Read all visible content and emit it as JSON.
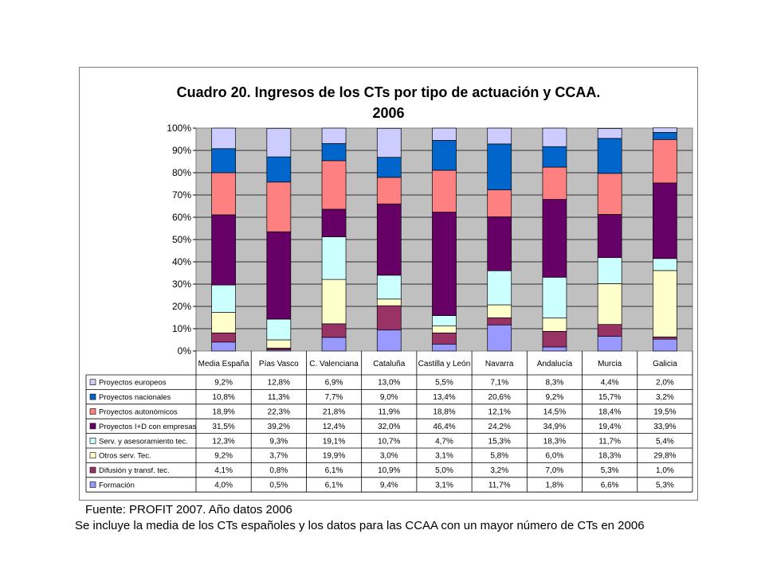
{
  "chart_data": {
    "type": "bar",
    "stacked": true,
    "percent_stacked": true,
    "title": "Cuadro 20. Ingresos de los CTs por tipo de actuación y CCAA. 2006",
    "title_lines": [
      "Cuadro 20. Ingresos de los CTs por tipo de actuación y CCAA.",
      "2006"
    ],
    "categories": [
      "Media España",
      "Pías Vasco",
      "C. Valenciana",
      "Cataluña",
      "Castilla y León",
      "Navarra",
      "Andalucía",
      "Murcia",
      "Galicia"
    ],
    "ylim": [
      0,
      100
    ],
    "yticks": [
      "0%",
      "10%",
      "20%",
      "30%",
      "40%",
      "50%",
      "60%",
      "70%",
      "80%",
      "90%",
      "100%"
    ],
    "grid": true,
    "plot_background": "#c0c0c0",
    "legend_placement": "data-table-left",
    "series": [
      {
        "name": "Proyectos europeos",
        "color": "#ccccff",
        "values": [
          9.2,
          12.8,
          6.9,
          13.0,
          5.5,
          7.1,
          8.3,
          4.4,
          2.0
        ],
        "labels": [
          "9,2%",
          "12,8%",
          "6,9%",
          "13,0%",
          "5,5%",
          "7,1%",
          "8,3%",
          "4,4%",
          "2,0%"
        ]
      },
      {
        "name": "Proyectos nacionales",
        "color": "#0066cc",
        "values": [
          10.8,
          11.3,
          7.7,
          9.0,
          13.4,
          20.6,
          9.2,
          15.7,
          3.2
        ],
        "labels": [
          "10,8%",
          "11,3%",
          "7,7%",
          "9,0%",
          "13,4%",
          "20,6%",
          "9,2%",
          "15,7%",
          "3,2%"
        ]
      },
      {
        "name": "Proyectos autonómicos",
        "color": "#ff8080",
        "values": [
          18.9,
          22.3,
          21.8,
          11.9,
          18.8,
          12.1,
          14.5,
          18.4,
          19.5
        ],
        "labels": [
          "18,9%",
          "22,3%",
          "21,8%",
          "11,9%",
          "18,8%",
          "12,1%",
          "14,5%",
          "18,4%",
          "19,5%"
        ]
      },
      {
        "name": "Proyectos I+D con empresas",
        "color": "#660066",
        "values": [
          31.5,
          39.2,
          12.4,
          32.0,
          46.4,
          24.2,
          34.9,
          19.4,
          33.9
        ],
        "labels": [
          "31,5%",
          "39,2%",
          "12,4%",
          "32,0%",
          "46,4%",
          "24,2%",
          "34,9%",
          "19,4%",
          "33,9%"
        ]
      },
      {
        "name": "Serv. y asesoramiento tec.",
        "color": "#ccffff",
        "values": [
          12.3,
          9.3,
          19.1,
          10.7,
          4.7,
          15.3,
          18.3,
          11.7,
          5.4
        ],
        "labels": [
          "12,3%",
          "9,3%",
          "19,1%",
          "10,7%",
          "4,7%",
          "15,3%",
          "18,3%",
          "11,7%",
          "5,4%"
        ]
      },
      {
        "name": "Otros serv. Tec.",
        "color": "#ffffcc",
        "values": [
          9.2,
          3.7,
          19.9,
          3.0,
          3.1,
          5.8,
          6.0,
          18.3,
          29.8
        ],
        "labels": [
          "9,2%",
          "3,7%",
          "19,9%",
          "3,0%",
          "3,1%",
          "5,8%",
          "6,0%",
          "18,3%",
          "29,8%"
        ]
      },
      {
        "name": "Difusión y transf. tec.",
        "color": "#993366",
        "values": [
          4.1,
          0.8,
          6.1,
          10.9,
          5.0,
          3.2,
          7.0,
          5.3,
          1.0
        ],
        "labels": [
          "4,1%",
          "0,8%",
          "6,1%",
          "10,9%",
          "5,0%",
          "3,2%",
          "7,0%",
          "5,3%",
          "1,0%"
        ]
      },
      {
        "name": "Formación",
        "color": "#9999ff",
        "values": [
          4.0,
          0.5,
          6.1,
          9.4,
          3.1,
          11.7,
          1.8,
          6.6,
          5.3
        ],
        "labels": [
          "4,0%",
          "0,5%",
          "6,1%",
          "9,4%",
          "3,1%",
          "11,7%",
          "1,8%",
          "6,6%",
          "5,3%"
        ]
      }
    ]
  },
  "footer": {
    "source": "Fuente: PROFIT 2007. Año datos 2006",
    "note": "Se incluye la media de los CTs españoles y los datos para las CCAA con un mayor número de CTs en 2006"
  }
}
